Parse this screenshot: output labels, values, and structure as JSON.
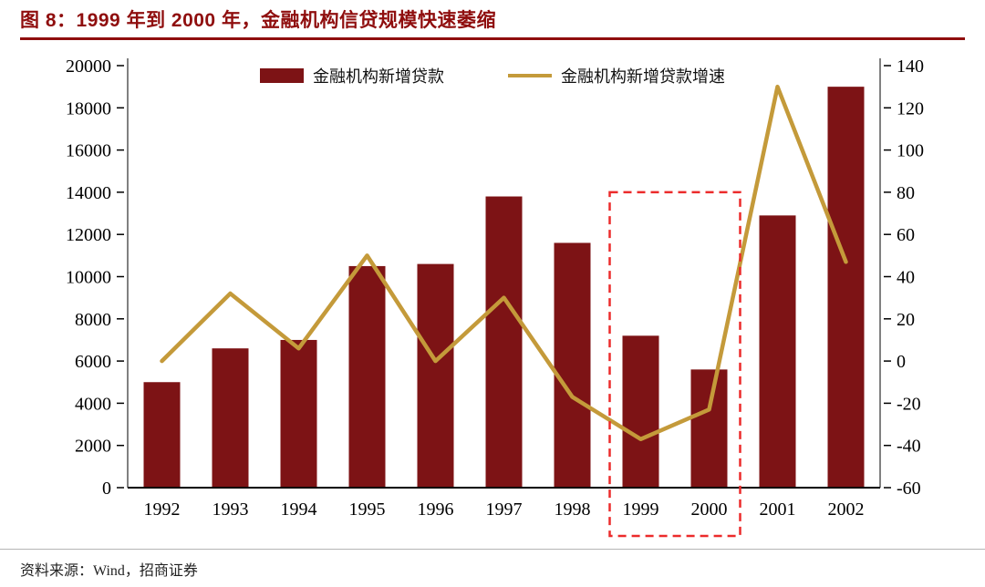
{
  "header": {
    "title": "图 8：1999 年到 2000 年，金融机构信贷规模快速萎缩"
  },
  "footer": {
    "source": "资料来源：Wind，招商证券"
  },
  "colors": {
    "bar": "#7D1315",
    "line": "#C49A3A",
    "title": "#8F0E0E",
    "rule": "#8F0E0E",
    "highlight": "#EC2B2B",
    "axis_text": "#000000",
    "axis_line": "#000000"
  },
  "chart_data": {
    "type": "bar+line combo",
    "title": "图 8：1999 年到 2000 年，金融机构信贷规模快速萎缩",
    "categories": [
      "1992",
      "1993",
      "1994",
      "1995",
      "1996",
      "1997",
      "1998",
      "1999",
      "2000",
      "2001",
      "2002"
    ],
    "series": [
      {
        "name": "金融机构新增贷款",
        "type": "bar",
        "axis": "left",
        "values": [
          5000,
          6600,
          7000,
          10500,
          10600,
          13800,
          11600,
          7200,
          5600,
          12900,
          19000
        ]
      },
      {
        "name": "金融机构新增贷款增速",
        "type": "line",
        "axis": "right",
        "values": [
          0,
          32,
          6,
          50,
          0,
          30,
          -17,
          -37,
          -23,
          130,
          47
        ]
      }
    ],
    "left_axis": {
      "min": 0,
      "max": 20000,
      "step": 2000,
      "ticks": [
        0,
        2000,
        4000,
        6000,
        8000,
        10000,
        12000,
        14000,
        16000,
        18000,
        20000
      ]
    },
    "right_axis": {
      "min": -60,
      "max": 140,
      "step": 20,
      "ticks": [
        -60,
        -40,
        -20,
        0,
        20,
        40,
        60,
        80,
        100,
        120,
        140
      ]
    },
    "grid": false,
    "legend_position": "top-center",
    "highlight": {
      "from": "1999",
      "to": "2000",
      "top_value_right_axis": 80,
      "style": "red dashed box"
    }
  }
}
